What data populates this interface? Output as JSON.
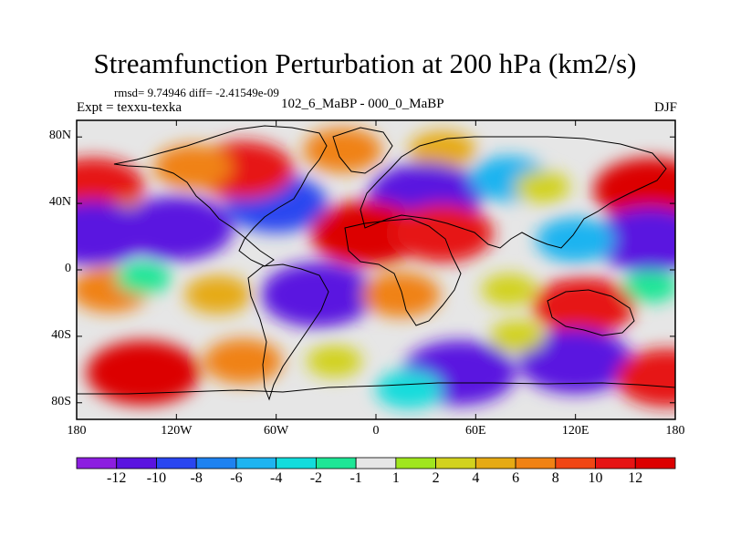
{
  "title": "Streamfunction Perturbation at 200 hPa (km2/s)",
  "stats_line": "rmsd= 9.74946 diff= -2.41549e-09",
  "expt_line": "Expt = texxu-texka",
  "comparison_line": "102_6_MaBP - 000_0_MaBP",
  "season": "DJF",
  "lat_labels": [
    "80N",
    "40N",
    "0",
    "40S",
    "80S"
  ],
  "lon_labels": [
    "180",
    "120W",
    "60W",
    "0",
    "60E",
    "120E",
    "180"
  ],
  "colorbar": {
    "labels": [
      "-12",
      "-10",
      "-8",
      "-6",
      "-4",
      "-2",
      "-1",
      "1",
      "2",
      "4",
      "6",
      "8",
      "10",
      "12"
    ],
    "colors": [
      "#8c1ee0",
      "#5a14e0",
      "#2a46f0",
      "#1e82f0",
      "#1eb4f0",
      "#12dcdc",
      "#1ee696",
      "#e6e6e6",
      "#a0e61e",
      "#d2d21e",
      "#e6aa14",
      "#f08214",
      "#f04614",
      "#e61414",
      "#dc0000"
    ]
  },
  "chart_data": {
    "type": "heatmap",
    "title": "Streamfunction Perturbation at 200 hPa (km2/s)",
    "variable": "Streamfunction Perturbation",
    "level": "200 hPa",
    "units": "km2/s",
    "season": "DJF",
    "rmsd": 9.74946,
    "diff": -2.41549e-09,
    "xlim": [
      -180,
      180
    ],
    "ylim": [
      -90,
      90
    ],
    "x_ticks": [
      -180,
      -120,
      -60,
      0,
      60,
      120,
      180
    ],
    "y_ticks": [
      80,
      40,
      0,
      -40,
      -80
    ],
    "contour_levels": [
      -12,
      -10,
      -8,
      -6,
      -4,
      -2,
      -1,
      1,
      2,
      4,
      6,
      8,
      10,
      12
    ],
    "features": [
      {
        "lon": -170,
        "lat": 50,
        "value": 10
      },
      {
        "lon": -150,
        "lat": 30,
        "value": 4
      },
      {
        "lon": -170,
        "lat": 22,
        "value": -12
      },
      {
        "lon": -120,
        "lat": 25,
        "value": -12
      },
      {
        "lon": -60,
        "lat": 40,
        "value": -10
      },
      {
        "lon": -80,
        "lat": 60,
        "value": 10
      },
      {
        "lon": -110,
        "lat": 62,
        "value": 6
      },
      {
        "lon": -20,
        "lat": 72,
        "value": 6
      },
      {
        "lon": 40,
        "lat": 72,
        "value": 4
      },
      {
        "lon": 30,
        "lat": 45,
        "value": -12
      },
      {
        "lon": 80,
        "lat": 55,
        "value": -6
      },
      {
        "lon": -5,
        "lat": 22,
        "value": 12
      },
      {
        "lon": 40,
        "lat": 22,
        "value": 10
      },
      {
        "lon": 100,
        "lat": 50,
        "value": 2
      },
      {
        "lon": 165,
        "lat": 48,
        "value": 12
      },
      {
        "lon": 165,
        "lat": 18,
        "value": -12
      },
      {
        "lon": 120,
        "lat": 18,
        "value": -6
      },
      {
        "lon": -160,
        "lat": -12,
        "value": 6
      },
      {
        "lon": -140,
        "lat": -5,
        "value": -2
      },
      {
        "lon": -35,
        "lat": -15,
        "value": -12
      },
      {
        "lon": -95,
        "lat": -15,
        "value": 4
      },
      {
        "lon": -25,
        "lat": -55,
        "value": 2
      },
      {
        "lon": 15,
        "lat": -15,
        "value": 6
      },
      {
        "lon": 80,
        "lat": -12,
        "value": 2
      },
      {
        "lon": 125,
        "lat": -22,
        "value": 10
      },
      {
        "lon": 165,
        "lat": -10,
        "value": -2
      },
      {
        "lon": -140,
        "lat": -62,
        "value": 12
      },
      {
        "lon": -80,
        "lat": -55,
        "value": 6
      },
      {
        "lon": 50,
        "lat": -62,
        "value": -12
      },
      {
        "lon": 120,
        "lat": -55,
        "value": -12
      },
      {
        "lon": 20,
        "lat": -72,
        "value": -4
      },
      {
        "lon": 175,
        "lat": -65,
        "value": 10
      },
      {
        "lon": 85,
        "lat": -40,
        "value": 2
      }
    ]
  }
}
